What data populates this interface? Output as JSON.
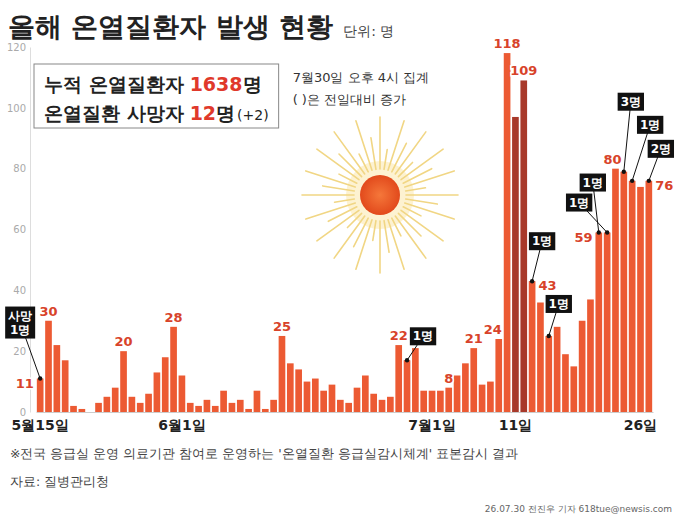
{
  "chart_data": {
    "type": "bar",
    "title": "올해 온열질환자 발생 현황",
    "unit_label": "단위: 명",
    "summary": [
      {
        "label": "누적 온열질환자",
        "value": 1638,
        "unit": "명"
      },
      {
        "label": "온열질환 사망자",
        "value": 12,
        "unit": "명",
        "change": "(+2)"
      }
    ],
    "notes": [
      "7월30일 오후 4시 집계",
      "( )은 전일대비 증가"
    ],
    "categories": [
      "5월15일",
      null,
      null,
      null,
      null,
      null,
      null,
      null,
      null,
      null,
      null,
      null,
      null,
      null,
      null,
      null,
      null,
      "6월1일",
      null,
      null,
      null,
      null,
      null,
      null,
      null,
      null,
      null,
      null,
      null,
      null,
      null,
      null,
      null,
      null,
      null,
      null,
      null,
      null,
      null,
      null,
      null,
      null,
      null,
      null,
      null,
      null,
      null,
      "7월1일",
      null,
      null,
      null,
      null,
      null,
      null,
      null,
      null,
      null,
      "11일",
      null,
      null,
      null,
      null,
      null,
      null,
      null,
      null,
      null,
      null,
      null,
      null,
      null,
      null,
      "26일",
      null
    ],
    "values": [
      11,
      30,
      22,
      17,
      2,
      1,
      0,
      3,
      5,
      8,
      20,
      5,
      3,
      6,
      13,
      18,
      28,
      12,
      3,
      2,
      4,
      2,
      7,
      3,
      4,
      1,
      7,
      1,
      4,
      25,
      16,
      14,
      10,
      11,
      7,
      9,
      4,
      3,
      8,
      12,
      6,
      4,
      5,
      22,
      17,
      21,
      7,
      7,
      7,
      8,
      12,
      16,
      21,
      9,
      10,
      24,
      118,
      97,
      109,
      43,
      36,
      25,
      28,
      19,
      15,
      30,
      37,
      59,
      59,
      80,
      79,
      76,
      74,
      76
    ],
    "colors": [
      "#ec5a33",
      "#ec5a33",
      "#ec5a33",
      "#ec5a33",
      "#ec5a33",
      "#ec5a33",
      "#ec5a33",
      "#ec5a33",
      "#ec5a33",
      "#ec5a33",
      "#ec5a33",
      "#ec5a33",
      "#ec5a33",
      "#ec5a33",
      "#ec5a33",
      "#ec5a33",
      "#ec5a33",
      "#ec5a33",
      "#ec5a33",
      "#ec5a33",
      "#ec5a33",
      "#ec5a33",
      "#ec5a33",
      "#ec5a33",
      "#ec5a33",
      "#ec5a33",
      "#ec5a33",
      "#ec5a33",
      "#ec5a33",
      "#ec5a33",
      "#ec5a33",
      "#ec5a33",
      "#ec5a33",
      "#ec5a33",
      "#ec5a33",
      "#ec5a33",
      "#ec5a33",
      "#ec5a33",
      "#ec5a33",
      "#ec5a33",
      "#ec5a33",
      "#ec5a33",
      "#ec5a33",
      "#ec5a33",
      "#ec5a33",
      "#ec5a33",
      "#ec5a33",
      "#ec5a33",
      "#ec5a33",
      "#ec5a33",
      "#ec5a33",
      "#ec5a33",
      "#ec5a33",
      "#ec5a33",
      "#ec5a33",
      "#ec5a33",
      "#ec5a33",
      "#a8392a",
      "#a8392a",
      "#ec5a33",
      "#ec5a33",
      "#ec5a33",
      "#ec5a33",
      "#ec5a33",
      "#ec5a33",
      "#ec5a33",
      "#ec5a33",
      "#ec5a33",
      "#ec5a33",
      "#ec5a33",
      "#ec5a33",
      "#ec5a33",
      "#ec5a33",
      "#ec5a33"
    ],
    "value_labels": [
      "11",
      "30",
      null,
      null,
      null,
      null,
      null,
      null,
      null,
      null,
      "20",
      null,
      null,
      null,
      null,
      null,
      "28",
      null,
      null,
      null,
      null,
      null,
      null,
      null,
      null,
      null,
      null,
      null,
      null,
      "25",
      null,
      null,
      null,
      null,
      null,
      null,
      null,
      null,
      null,
      null,
      null,
      null,
      null,
      "22",
      null,
      null,
      null,
      null,
      null,
      "8",
      null,
      null,
      "21",
      null,
      null,
      "24",
      "118",
      null,
      "109",
      "43",
      null,
      null,
      null,
      null,
      null,
      null,
      null,
      "59",
      null,
      "80",
      null,
      null,
      null,
      "76"
    ],
    "death_labels": [
      "사망 1명",
      null,
      null,
      null,
      null,
      null,
      null,
      null,
      null,
      null,
      null,
      null,
      null,
      null,
      null,
      null,
      null,
      null,
      null,
      null,
      null,
      null,
      null,
      null,
      null,
      null,
      null,
      null,
      null,
      null,
      null,
      null,
      null,
      null,
      null,
      null,
      null,
      null,
      null,
      null,
      null,
      null,
      null,
      null,
      "1명",
      null,
      null,
      null,
      null,
      null,
      null,
      null,
      null,
      null,
      null,
      null,
      null,
      null,
      null,
      "1명",
      null,
      "1명",
      null,
      null,
      null,
      null,
      null,
      "1명",
      "1명",
      null,
      "3명",
      "1명",
      null,
      "2명"
    ],
    "data_labels": true,
    "ylim": [
      0,
      120
    ],
    "yticks": [
      0,
      20,
      40,
      60,
      80,
      100,
      120
    ],
    "grid": false,
    "footnote": "※전국 응급실 운영 의료기관 참여로 운영하는 '온열질환 응급실감시체계' 표본감시 결과",
    "source": "자료: 질병관리청",
    "credit": "26.07.30 전진우 기자 618tue@newsis.com"
  }
}
